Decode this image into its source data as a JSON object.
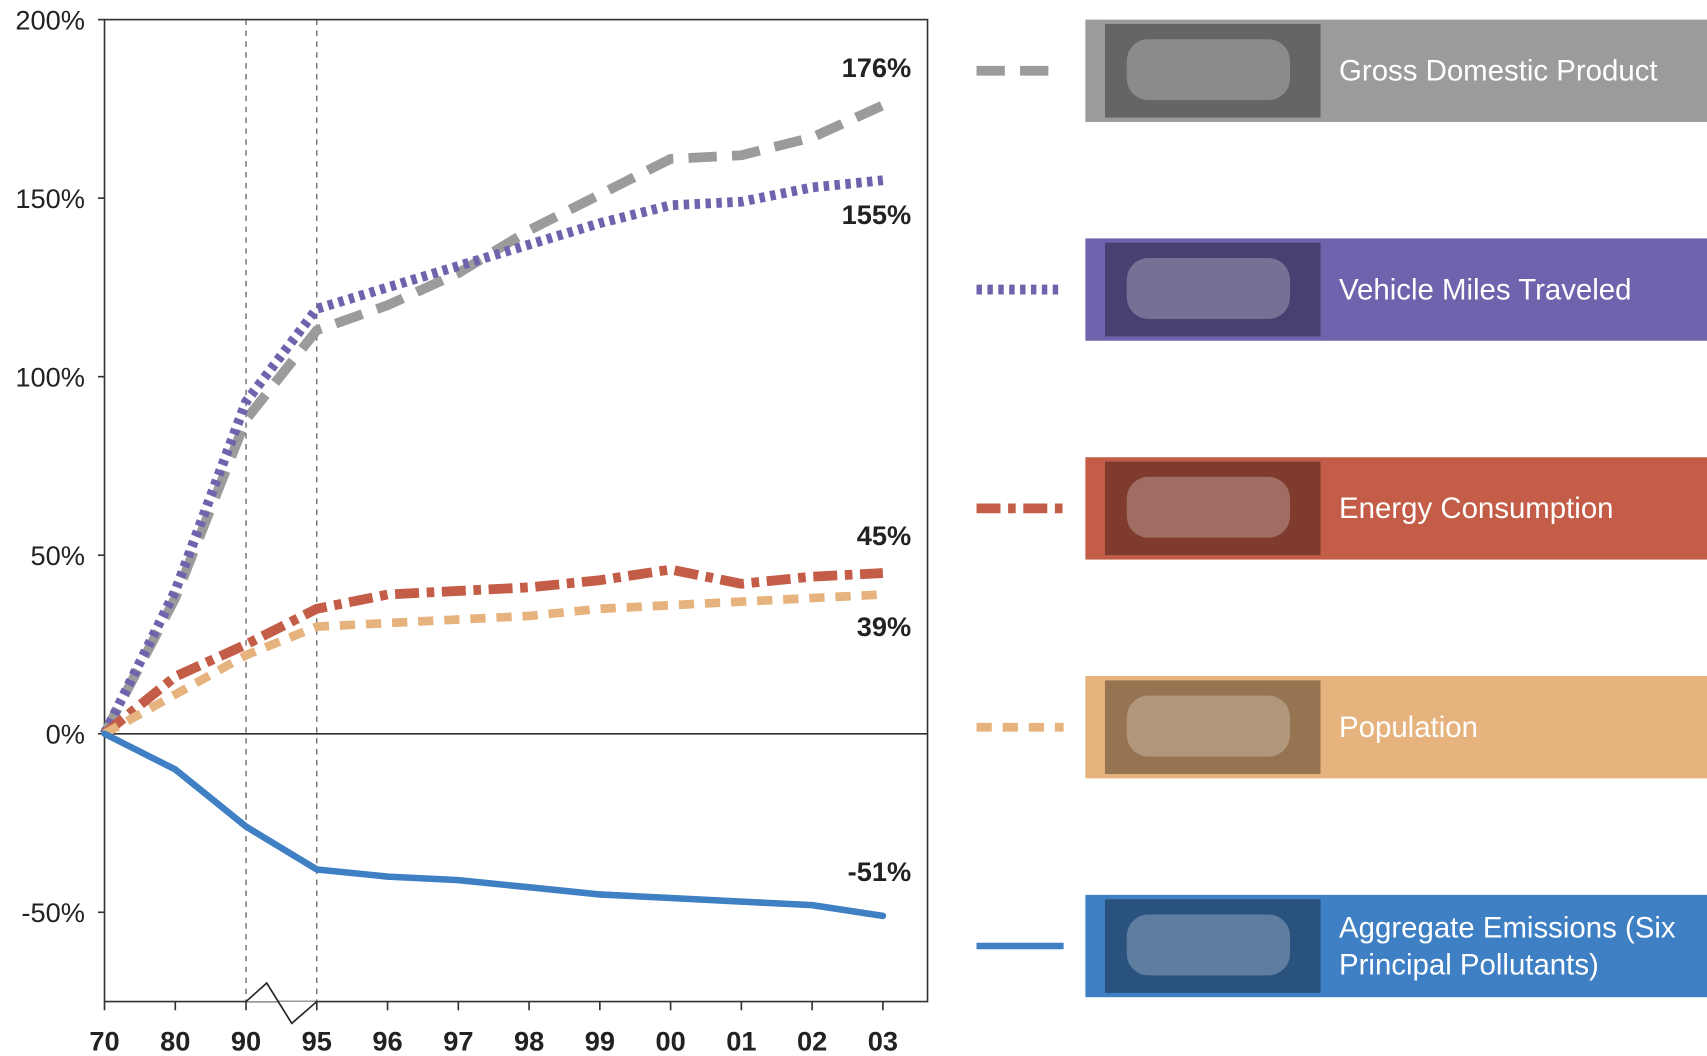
{
  "chart_data": {
    "type": "line",
    "categories": [
      "70",
      "80",
      "90",
      "95",
      "96",
      "97",
      "98",
      "99",
      "00",
      "01",
      "02",
      "03"
    ],
    "ylim": [
      -75,
      200
    ],
    "yticks": [
      {
        "value": -50,
        "label": "-50%"
      },
      {
        "value": 0,
        "label": "0%"
      },
      {
        "value": 50,
        "label": "50%"
      },
      {
        "value": 100,
        "label": "100%"
      },
      {
        "value": 150,
        "label": "150%"
      },
      {
        "value": 200,
        "label": "200%"
      }
    ],
    "legend": "right",
    "series": [
      {
        "name": "Gross Domestic Product",
        "color": "#9b9b9b",
        "dash": "dashed",
        "values": [
          0,
          38,
          88,
          113,
          120,
          129,
          141,
          151,
          161,
          162,
          167,
          176
        ],
        "value_labels": [
          null,
          null,
          null,
          null,
          null,
          null,
          null,
          null,
          null,
          null,
          null,
          "176%"
        ]
      },
      {
        "name": "Vehicle Miles Traveled",
        "color": "#6f63ad",
        "dash": "dotted",
        "values": [
          0,
          40,
          93,
          119,
          125,
          131,
          137,
          143,
          148,
          149,
          153,
          155
        ],
        "value_labels": [
          null,
          null,
          null,
          null,
          null,
          null,
          null,
          null,
          null,
          null,
          null,
          "155%"
        ]
      },
      {
        "name": "Energy Consumption",
        "color": "#c35d47",
        "dash": "dashdot",
        "values": [
          0,
          16,
          25,
          35,
          39,
          40,
          41,
          43,
          46,
          42,
          44,
          45
        ],
        "value_labels": [
          null,
          null,
          null,
          null,
          null,
          null,
          null,
          null,
          null,
          null,
          null,
          "45%"
        ]
      },
      {
        "name": "Population",
        "color": "#e6b27d",
        "dash": "shortdash",
        "values": [
          0,
          11,
          22,
          30,
          31,
          32,
          33,
          35,
          36,
          37,
          38,
          39
        ],
        "value_labels": [
          null,
          null,
          null,
          null,
          null,
          null,
          null,
          null,
          null,
          null,
          null,
          "39%"
        ]
      },
      {
        "name": "Aggregate Emissions (Six Principal Pollutants)",
        "color": "#3f7fc4",
        "dash": "solid",
        "values": [
          0,
          -10,
          -26,
          -38,
          -40,
          -41,
          -43,
          -45,
          -46,
          -47,
          -48,
          -51
        ],
        "value_labels": [
          null,
          null,
          null,
          null,
          null,
          null,
          null,
          null,
          null,
          null,
          null,
          "-51%"
        ]
      }
    ]
  }
}
